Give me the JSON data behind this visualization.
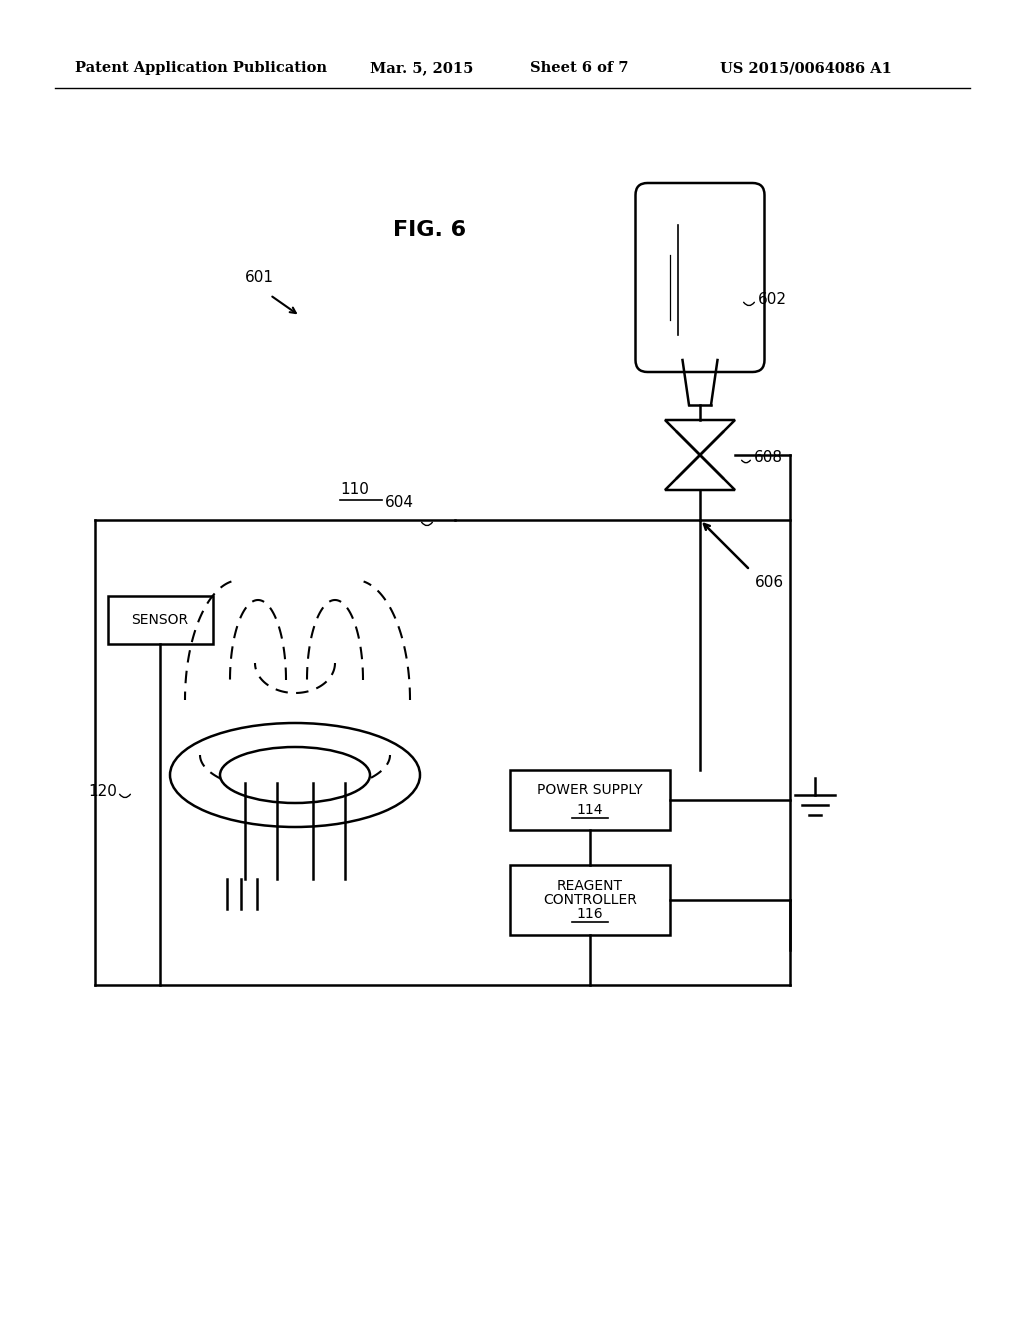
{
  "title_header": "Patent Application Publication",
  "date_header": "Mar. 5, 2015",
  "sheet_header": "Sheet 6 of 7",
  "patent_number": "US 2015/0064086 A1",
  "fig_label": "FIG. 6",
  "background_color": "#ffffff",
  "line_color": "#000000"
}
